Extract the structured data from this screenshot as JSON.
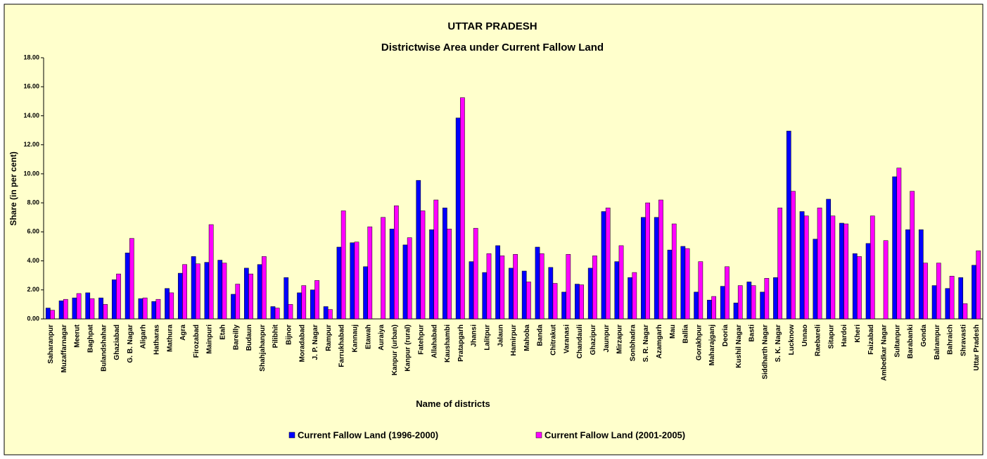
{
  "chart_data": {
    "type": "bar",
    "title": "UTTAR PRADESH",
    "subtitle": "Districtwise Area under Current Fallow Land",
    "y_label": "Share (in per cent)",
    "x_label": "Name of districts",
    "categories": [
      "Saharanpur",
      "Muzaffarnagar",
      "Meerut",
      "Baghpat",
      "Bulandshahar",
      "Ghaziabad",
      "G. B. Nagar",
      "Aligarh",
      "Hatharas",
      "Mathura",
      "Agra",
      "Firozabad",
      "Mainpuri",
      "Etah",
      "Bareilly",
      "Budaun",
      "Shahjahanpur",
      "Pilibhit",
      "Bijnor",
      "Moradabad",
      "J. P. Nagar",
      "Rampur",
      "Farrukhabad",
      "Kannauj",
      "Etawah",
      "Auraiya",
      "Kanpur (urban)",
      "Kanpur (rural)",
      "Fatehpur",
      "Allahabad",
      "Kaushambi",
      "Pratapgarh",
      "Jhansi",
      "Lalitpur",
      "Jalaun",
      "Hamirpur",
      "Mahoba",
      "Banda",
      "Chitrakut",
      "Varanasi",
      "Chandauli",
      "Ghazipur",
      "Jaunpur",
      "Mirzapur",
      "Sonbhadra",
      "S. R. Nagar",
      "Azamgarh",
      "Mau",
      "Ballia",
      "Gorakhpur",
      "Maharajganj",
      "Deoria",
      "Kushil Nagar",
      "Basti",
      "Siddharth Nagar",
      "S. K. Nagar",
      "Lucknow",
      "Unnao",
      "Raebareli",
      "Sitapur",
      "Hardoi",
      "Kheri",
      "Faizabad",
      "Ambedkar Nagar",
      "Sultanpur",
      "Barabanki",
      "Gonda",
      "Balrampur",
      "Bahraich",
      "Shravasti",
      "Uttar Pradesh"
    ],
    "series": [
      {
        "name": "Current Fallow Land (1996-2000)",
        "color": "#0000ff",
        "values": [
          0.75,
          1.25,
          1.45,
          1.8,
          1.45,
          2.7,
          4.55,
          1.4,
          1.2,
          2.1,
          3.15,
          4.3,
          3.9,
          4.05,
          1.7,
          3.5,
          3.75,
          0.85,
          2.85,
          1.8,
          2.0,
          0.85,
          4.95,
          5.25,
          3.6,
          0,
          6.2,
          5.1,
          9.55,
          6.15,
          7.65,
          13.85,
          3.95,
          3.2,
          5.05,
          3.5,
          3.3,
          4.95,
          3.55,
          1.85,
          2.4,
          3.5,
          7.4,
          3.95,
          2.85,
          7.0,
          7.0,
          4.75,
          5.0,
          1.85,
          1.3,
          2.25,
          1.1,
          2.55,
          1.85,
          2.85,
          12.95,
          7.4,
          5.5,
          8.25,
          6.6,
          4.5,
          5.2,
          0,
          9.8,
          6.15,
          6.15,
          2.3,
          2.1,
          2.85,
          3.7
        ]
      },
      {
        "name": "Current Fallow Land (2001-2005)",
        "color": "#ff00ff",
        "values": [
          0.6,
          1.35,
          1.75,
          1.4,
          1.0,
          3.1,
          5.55,
          1.45,
          1.35,
          1.8,
          3.75,
          3.8,
          6.5,
          3.85,
          2.4,
          3.1,
          4.3,
          0.75,
          1.0,
          2.3,
          2.65,
          0.65,
          7.45,
          5.3,
          6.35,
          7.0,
          7.8,
          5.6,
          7.45,
          8.2,
          6.2,
          15.25,
          6.25,
          4.5,
          4.35,
          4.45,
          2.55,
          4.5,
          2.45,
          4.45,
          2.35,
          4.35,
          7.65,
          5.05,
          3.2,
          8.0,
          8.2,
          6.55,
          4.85,
          3.95,
          1.55,
          3.6,
          2.3,
          2.3,
          2.8,
          7.65,
          8.8,
          7.1,
          7.65,
          7.1,
          6.55,
          4.3,
          7.1,
          5.4,
          10.4,
          8.8,
          3.85,
          3.85,
          2.95,
          1.05,
          4.7
        ]
      }
    ],
    "ylim": [
      0,
      18
    ],
    "yticks": [
      {
        "value": 0,
        "label": "0.00"
      },
      {
        "value": 2,
        "label": "2.00"
      },
      {
        "value": 4,
        "label": "4.00"
      },
      {
        "value": 6,
        "label": "6.00"
      },
      {
        "value": 8,
        "label": "8.00"
      },
      {
        "value": 10,
        "label": "10.00"
      },
      {
        "value": 12,
        "label": "12.00"
      },
      {
        "value": 14,
        "label": "14.00"
      },
      {
        "value": 16,
        "label": "16.00"
      },
      {
        "value": 18,
        "label": "18.00"
      }
    ],
    "grid": false,
    "legend": "bottom"
  }
}
